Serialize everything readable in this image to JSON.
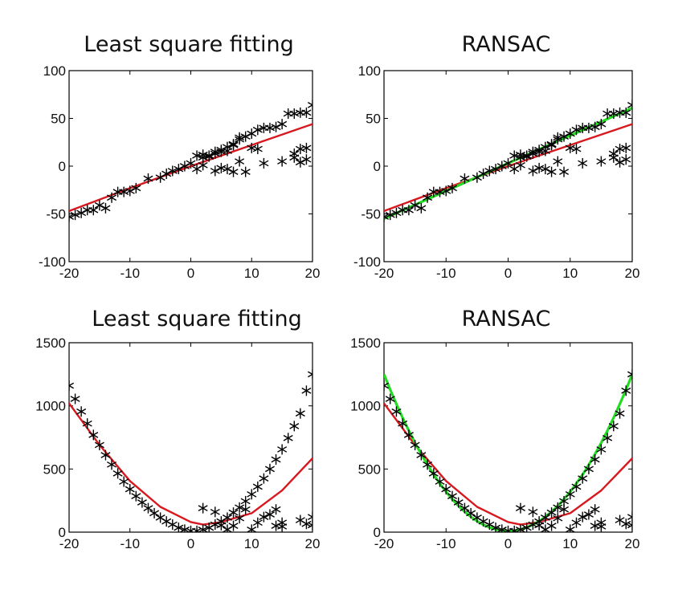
{
  "colors": {
    "least_squares": "#d8181f",
    "ransac": "#22dd22",
    "markers": "#000000",
    "axes": "#000000"
  },
  "chart_data": [
    {
      "type": "scatter",
      "title": "Least square fitting",
      "xlim": [
        -20,
        20
      ],
      "ylim": [
        -100,
        100
      ],
      "xticks": [
        -20,
        -10,
        0,
        10,
        20
      ],
      "yticks": [
        -100,
        -50,
        0,
        50,
        100
      ],
      "points": [
        [
          -20,
          -53
        ],
        [
          -19,
          -51
        ],
        [
          -18,
          -49
        ],
        [
          -17,
          -46
        ],
        [
          -16,
          -46
        ],
        [
          -15,
          -41
        ],
        [
          -14,
          -44
        ],
        [
          -13,
          -33
        ],
        [
          -12,
          -27
        ],
        [
          -11,
          -27
        ],
        [
          -10,
          -26
        ],
        [
          -9,
          -23
        ],
        [
          -7,
          -13
        ],
        [
          -5,
          -12
        ],
        [
          -4,
          -8
        ],
        [
          -3,
          -5
        ],
        [
          -2,
          -3
        ],
        [
          -1,
          0
        ],
        [
          0,
          3
        ],
        [
          1,
          11
        ],
        [
          2,
          12
        ],
        [
          2,
          9
        ],
        [
          3,
          10
        ],
        [
          3,
          11
        ],
        [
          4,
          15
        ],
        [
          4,
          13
        ],
        [
          5,
          15
        ],
        [
          5,
          17
        ],
        [
          6,
          16
        ],
        [
          6,
          20
        ],
        [
          7,
          22
        ],
        [
          7,
          23
        ],
        [
          8,
          28
        ],
        [
          8,
          30
        ],
        [
          9,
          31
        ],
        [
          10,
          34
        ],
        [
          11,
          38
        ],
        [
          12,
          40
        ],
        [
          13,
          40
        ],
        [
          14,
          41
        ],
        [
          15,
          44
        ],
        [
          16,
          55
        ],
        [
          17,
          55
        ],
        [
          18,
          56
        ],
        [
          19,
          56
        ],
        [
          20,
          64
        ],
        [
          1,
          -3
        ],
        [
          2,
          1
        ],
        [
          4,
          -5
        ],
        [
          5,
          -2
        ],
        [
          6,
          -3
        ],
        [
          7,
          -6
        ],
        [
          8,
          5
        ],
        [
          9,
          -6
        ],
        [
          10,
          19
        ],
        [
          11,
          18
        ],
        [
          12,
          3
        ],
        [
          15,
          5
        ],
        [
          17,
          9
        ],
        [
          17,
          13
        ],
        [
          18,
          18
        ],
        [
          18,
          4
        ],
        [
          19,
          19
        ],
        [
          19,
          7
        ]
      ],
      "lines": [
        {
          "color_key": "least_squares",
          "x": [
            -20,
            -10,
            0,
            10,
            20
          ],
          "y": [
            -47,
            -23,
            0,
            22,
            44
          ]
        }
      ]
    },
    {
      "type": "scatter",
      "title": "RANSAC",
      "xlim": [
        -20,
        20
      ],
      "ylim": [
        -100,
        100
      ],
      "xticks": [
        -20,
        -10,
        0,
        10,
        20
      ],
      "yticks": [
        -100,
        -50,
        0,
        50,
        100
      ],
      "points": [
        [
          -20,
          -53
        ],
        [
          -19,
          -51
        ],
        [
          -18,
          -49
        ],
        [
          -17,
          -46
        ],
        [
          -16,
          -46
        ],
        [
          -15,
          -41
        ],
        [
          -14,
          -44
        ],
        [
          -13,
          -33
        ],
        [
          -12,
          -27
        ],
        [
          -11,
          -27
        ],
        [
          -10,
          -26
        ],
        [
          -9,
          -23
        ],
        [
          -7,
          -13
        ],
        [
          -5,
          -12
        ],
        [
          -4,
          -8
        ],
        [
          -3,
          -5
        ],
        [
          -2,
          -3
        ],
        [
          -1,
          0
        ],
        [
          0,
          3
        ],
        [
          1,
          11
        ],
        [
          2,
          12
        ],
        [
          2,
          9
        ],
        [
          3,
          10
        ],
        [
          3,
          11
        ],
        [
          4,
          15
        ],
        [
          4,
          13
        ],
        [
          5,
          15
        ],
        [
          5,
          17
        ],
        [
          6,
          16
        ],
        [
          6,
          20
        ],
        [
          7,
          22
        ],
        [
          7,
          23
        ],
        [
          8,
          28
        ],
        [
          8,
          30
        ],
        [
          9,
          31
        ],
        [
          10,
          34
        ],
        [
          11,
          38
        ],
        [
          12,
          40
        ],
        [
          13,
          40
        ],
        [
          14,
          41
        ],
        [
          15,
          44
        ],
        [
          16,
          55
        ],
        [
          17,
          55
        ],
        [
          18,
          56
        ],
        [
          19,
          56
        ],
        [
          20,
          64
        ],
        [
          1,
          -3
        ],
        [
          2,
          1
        ],
        [
          4,
          -5
        ],
        [
          5,
          -2
        ],
        [
          6,
          -3
        ],
        [
          7,
          -6
        ],
        [
          8,
          5
        ],
        [
          9,
          -6
        ],
        [
          10,
          19
        ],
        [
          11,
          18
        ],
        [
          12,
          3
        ],
        [
          15,
          5
        ],
        [
          17,
          9
        ],
        [
          17,
          13
        ],
        [
          18,
          18
        ],
        [
          18,
          4
        ],
        [
          19,
          19
        ],
        [
          19,
          7
        ]
      ],
      "lines": [
        {
          "color_key": "least_squares",
          "x": [
            -20,
            -10,
            0,
            10,
            20
          ],
          "y": [
            -47,
            -23,
            0,
            22,
            44
          ]
        },
        {
          "color_key": "ransac",
          "x": [
            -20,
            20
          ],
          "y": [
            -55,
            61
          ]
        }
      ]
    },
    {
      "type": "scatter",
      "title": "Least square fitting",
      "xlim": [
        -20,
        20
      ],
      "ylim": [
        0,
        1500
      ],
      "xticks": [
        -20,
        -10,
        0,
        10,
        20
      ],
      "yticks": [
        0,
        500,
        1000,
        1500
      ],
      "points": [
        [
          -20,
          1160
        ],
        [
          -19,
          1055
        ],
        [
          -18,
          955
        ],
        [
          -17,
          860
        ],
        [
          -16,
          770
        ],
        [
          -15,
          690
        ],
        [
          -14,
          610
        ],
        [
          -13,
          535
        ],
        [
          -12,
          465
        ],
        [
          -11,
          400
        ],
        [
          -10,
          340
        ],
        [
          -9,
          285
        ],
        [
          -8,
          235
        ],
        [
          -7,
          190
        ],
        [
          -6,
          150
        ],
        [
          -5,
          115
        ],
        [
          -4,
          85
        ],
        [
          -3,
          60
        ],
        [
          -2,
          35
        ],
        [
          -1,
          20
        ],
        [
          0,
          10
        ],
        [
          1,
          10
        ],
        [
          2,
          20
        ],
        [
          3,
          35
        ],
        [
          4,
          60
        ],
        [
          5,
          85
        ],
        [
          6,
          115
        ],
        [
          7,
          155
        ],
        [
          8,
          195
        ],
        [
          9,
          245
        ],
        [
          10,
          300
        ],
        [
          11,
          360
        ],
        [
          12,
          425
        ],
        [
          13,
          500
        ],
        [
          14,
          575
        ],
        [
          15,
          655
        ],
        [
          16,
          745
        ],
        [
          17,
          840
        ],
        [
          18,
          940
        ],
        [
          19,
          1120
        ],
        [
          20,
          1250
        ],
        [
          2,
          190
        ],
        [
          4,
          160
        ],
        [
          5,
          55
        ],
        [
          6,
          20
        ],
        [
          7,
          50
        ],
        [
          8,
          110
        ],
        [
          9,
          180
        ],
        [
          10,
          20
        ],
        [
          11,
          75
        ],
        [
          12,
          120
        ],
        [
          13,
          140
        ],
        [
          14,
          180
        ],
        [
          14,
          50
        ],
        [
          15,
          75
        ],
        [
          15,
          45
        ],
        [
          18,
          95
        ],
        [
          19,
          65
        ],
        [
          20,
          120
        ],
        [
          20,
          55
        ]
      ],
      "lines": [
        {
          "color_key": "least_squares",
          "x": [
            -20,
            -15,
            -10,
            -5,
            0,
            2,
            5,
            10,
            15,
            20
          ],
          "y": [
            1020,
            690,
            405,
            200,
            80,
            60,
            80,
            150,
            330,
            585
          ]
        }
      ]
    },
    {
      "type": "scatter",
      "title": "RANSAC",
      "xlim": [
        -20,
        20
      ],
      "ylim": [
        0,
        1500
      ],
      "xticks": [
        -20,
        -10,
        0,
        10,
        20
      ],
      "yticks": [
        0,
        500,
        1000,
        1500
      ],
      "points": [
        [
          -20,
          1160
        ],
        [
          -19,
          1055
        ],
        [
          -18,
          955
        ],
        [
          -17,
          860
        ],
        [
          -16,
          770
        ],
        [
          -15,
          690
        ],
        [
          -14,
          610
        ],
        [
          -13,
          535
        ],
        [
          -12,
          465
        ],
        [
          -11,
          400
        ],
        [
          -10,
          340
        ],
        [
          -9,
          285
        ],
        [
          -8,
          235
        ],
        [
          -7,
          190
        ],
        [
          -6,
          150
        ],
        [
          -5,
          115
        ],
        [
          -4,
          85
        ],
        [
          -3,
          60
        ],
        [
          -2,
          35
        ],
        [
          -1,
          20
        ],
        [
          0,
          10
        ],
        [
          1,
          10
        ],
        [
          2,
          20
        ],
        [
          3,
          35
        ],
        [
          4,
          60
        ],
        [
          5,
          85
        ],
        [
          6,
          115
        ],
        [
          7,
          155
        ],
        [
          8,
          195
        ],
        [
          9,
          245
        ],
        [
          10,
          300
        ],
        [
          11,
          360
        ],
        [
          12,
          425
        ],
        [
          13,
          500
        ],
        [
          14,
          575
        ],
        [
          15,
          655
        ],
        [
          16,
          745
        ],
        [
          17,
          840
        ],
        [
          18,
          940
        ],
        [
          19,
          1120
        ],
        [
          20,
          1250
        ],
        [
          2,
          190
        ],
        [
          4,
          160
        ],
        [
          5,
          55
        ],
        [
          6,
          20
        ],
        [
          7,
          50
        ],
        [
          8,
          110
        ],
        [
          9,
          180
        ],
        [
          10,
          20
        ],
        [
          11,
          75
        ],
        [
          12,
          120
        ],
        [
          13,
          140
        ],
        [
          14,
          180
        ],
        [
          14,
          50
        ],
        [
          15,
          75
        ],
        [
          15,
          45
        ],
        [
          18,
          95
        ],
        [
          19,
          65
        ],
        [
          20,
          120
        ],
        [
          20,
          55
        ]
      ],
      "lines": [
        {
          "color_key": "least_squares",
          "x": [
            -20,
            -15,
            -10,
            -5,
            0,
            2,
            5,
            10,
            15,
            20
          ],
          "y": [
            1020,
            690,
            405,
            200,
            80,
            60,
            80,
            150,
            330,
            585
          ]
        },
        {
          "color_key": "ransac",
          "curve": "quadratic",
          "coefficients": [
            3.1,
            0,
            10
          ],
          "x_range": [
            -20,
            20
          ]
        }
      ]
    }
  ]
}
